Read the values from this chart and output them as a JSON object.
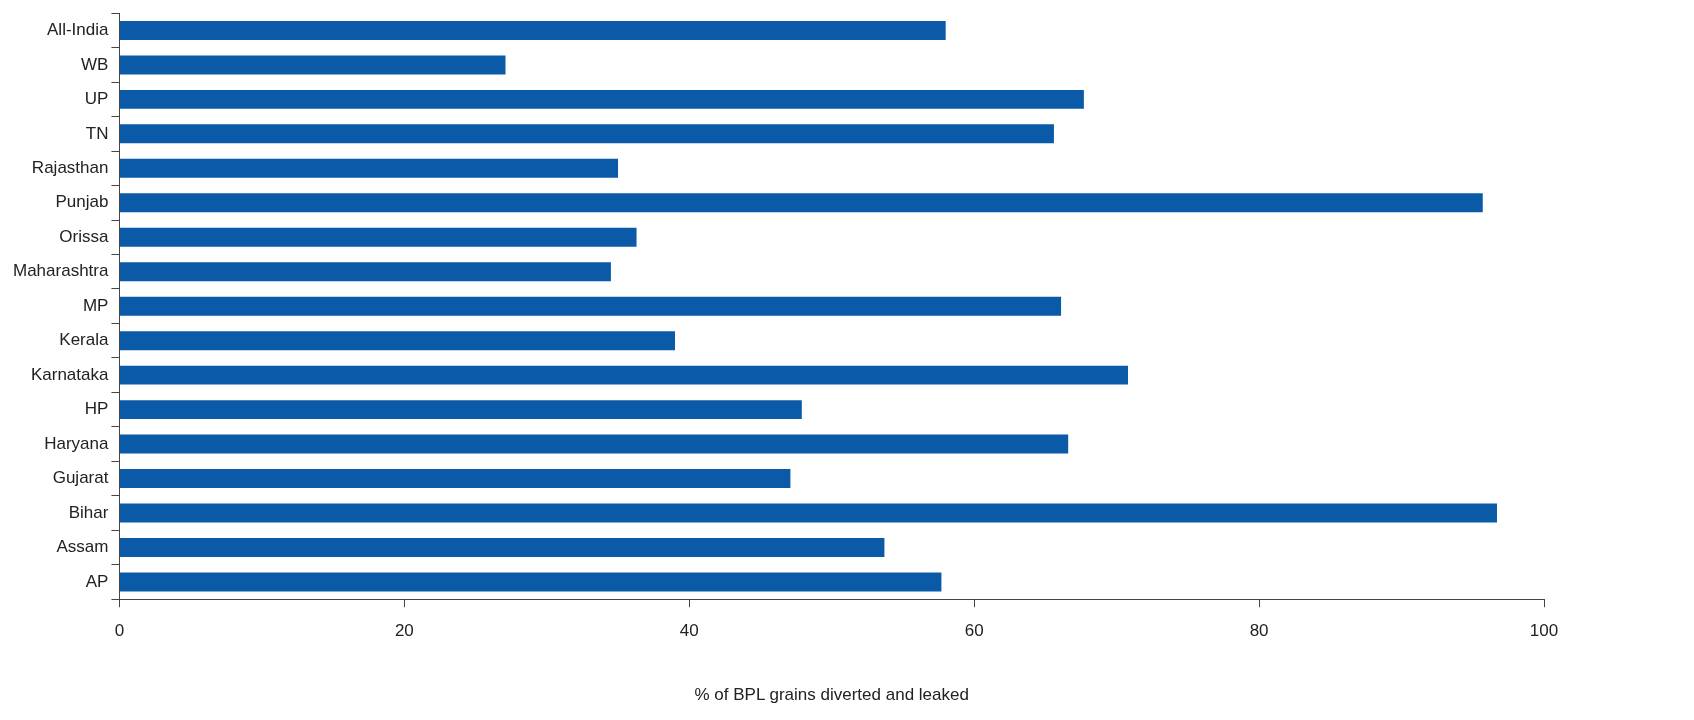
{
  "chart_data": {
    "type": "bar",
    "orientation": "horizontal",
    "xlabel": "% of BPL grains diverted and leaked",
    "categories": [
      "All-India",
      "WB",
      "UP",
      "TN",
      "Rajasthan",
      "Punjab",
      "Orissa",
      "Maharashtra",
      "MP",
      "Kerala",
      "Karnataka",
      "HP",
      "Haryana",
      "Gujarat",
      "Bihar",
      "Assam",
      "AP"
    ],
    "values": [
      58.0,
      27.1,
      67.7,
      65.6,
      35.0,
      95.7,
      36.3,
      34.5,
      66.1,
      39.0,
      70.8,
      47.9,
      66.6,
      47.1,
      96.7,
      53.7,
      57.7
    ],
    "color": "#0b5aa8",
    "xlim": [
      0,
      100
    ],
    "xticks": [
      0,
      20,
      40,
      60,
      80,
      100
    ],
    "grid": false,
    "legend": false
  }
}
